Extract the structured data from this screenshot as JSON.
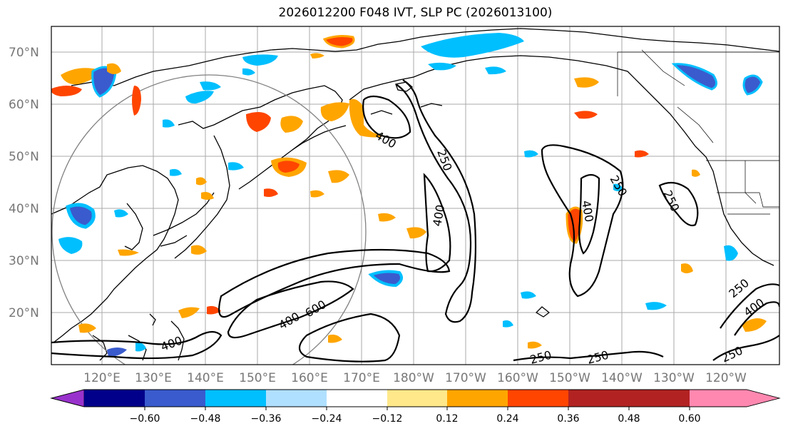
{
  "title": "2026012200 F048 IVT, SLP PC (2026013100)",
  "lat_labels": [
    "70°N",
    "60°N",
    "50°N",
    "40°N",
    "30°N",
    "20°N"
  ],
  "lon_labels": [
    "120°E",
    "130°E",
    "140°E",
    "150°E",
    "160°E",
    "170°E",
    "180°W",
    "170°W",
    "160°W",
    "150°W",
    "140°W",
    "130°W",
    "120°W"
  ],
  "colorbar": {
    "ticks": [
      "−0.60",
      "−0.48",
      "−0.36",
      "−0.24",
      "−0.12",
      "0.12",
      "0.24",
      "0.36",
      "0.48",
      "0.60"
    ],
    "colors": [
      "#9932cc",
      "#00008b",
      "#3a5bcd",
      "#00bfff",
      "#b0e0ff",
      "#ffffff",
      "#ffe88a",
      "#ffa500",
      "#ff4500",
      "#b22222",
      "#ff88b0"
    ]
  },
  "contour_labels": {
    "c400_gulf": "400",
    "c250_mid": "250",
    "c400_mid": "400",
    "c400_600a": "400",
    "c400_600b": "600",
    "c400_sw": "400",
    "c250_e1": "250",
    "c400_e1": "400",
    "c250_e2": "250",
    "c250_s1": "250",
    "c250_s2": "250",
    "c250_se": "250",
    "c400_se": "400",
    "c250_se2": "250"
  }
}
